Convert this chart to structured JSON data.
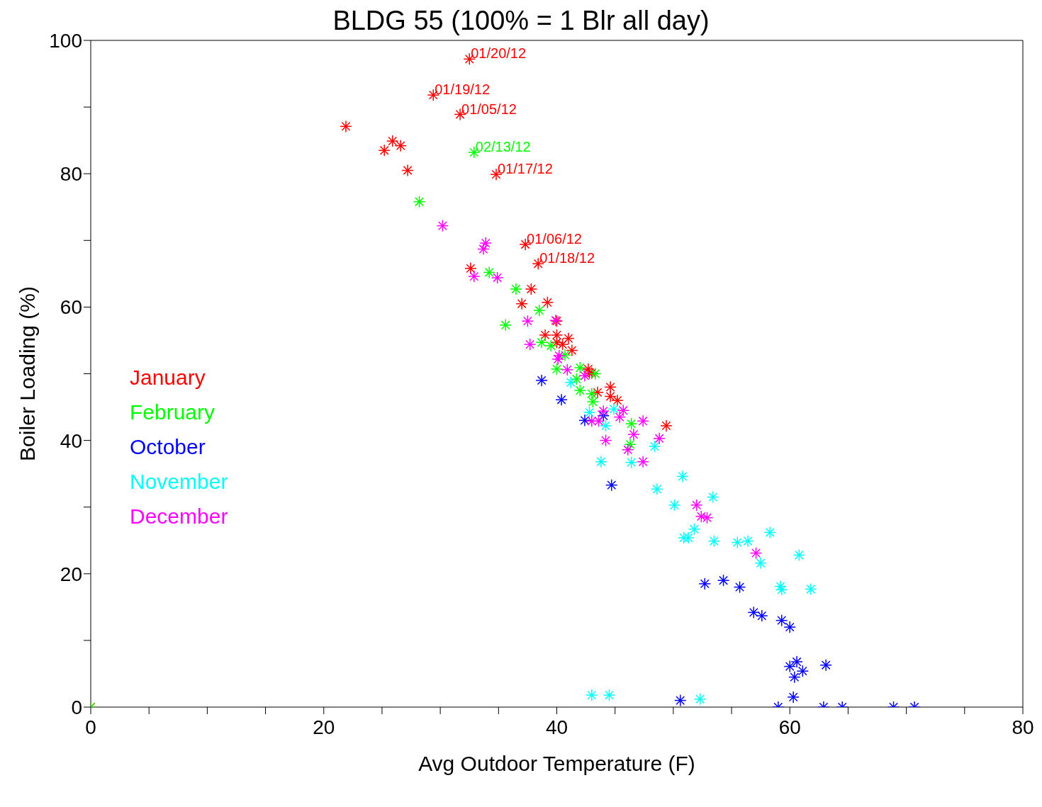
{
  "chart_data": {
    "type": "scatter",
    "title": "BLDG 55 (100% = 1 Blr all day)",
    "xlabel": "Avg Outdoor Temperature (F)",
    "ylabel": "Boiler Loading (%)",
    "xlim": [
      0,
      80
    ],
    "ylim": [
      0,
      100
    ],
    "xticks": [
      0,
      {
        "value": 5,
        "label": null
      },
      {
        "value": 10,
        "label": null
      },
      {
        "value": 15,
        "label": null
      },
      20,
      {
        "value": 25,
        "label": null
      },
      {
        "value": 30,
        "label": null
      },
      {
        "value": 35,
        "label": null
      },
      40,
      {
        "value": 45,
        "label": null
      },
      {
        "value": 50,
        "label": null
      },
      {
        "value": 55,
        "label": null
      },
      60,
      {
        "value": 65,
        "label": null
      },
      {
        "value": 70,
        "label": null
      },
      {
        "value": 75,
        "label": null
      },
      80
    ],
    "yticks": [
      0,
      {
        "value": 10,
        "label": null
      },
      20,
      {
        "value": 30,
        "label": null
      },
      40,
      {
        "value": 50,
        "label": null
      },
      60,
      {
        "value": 70,
        "label": null
      },
      80,
      {
        "value": 90,
        "label": null
      },
      100
    ],
    "grid": false,
    "legend": "left",
    "marker": "cross",
    "series": [
      {
        "name": "January",
        "color": "#ff0000",
        "x": [
          0,
          21.9,
          25.2,
          25.9,
          26.6,
          27.2,
          32.5,
          29.4,
          31.7,
          34.8,
          37.3,
          38.4,
          32.6,
          37.8,
          37.0,
          39.2,
          40.0,
          39.0,
          40.0,
          41.0,
          40.0,
          40.5,
          41.3,
          42.7,
          42.8,
          43.0,
          44.6,
          43.5,
          44.6,
          45.2,
          49.4
        ],
        "values": [
          0,
          87.1,
          83.5,
          84.9,
          84.2,
          80.5,
          97.2,
          91.8,
          88.9,
          79.9,
          69.4,
          66.5,
          65.8,
          62.7,
          60.5,
          60.7,
          57.9,
          55.8,
          55.8,
          55.3,
          54.7,
          54.4,
          53.5,
          50.7,
          50.1,
          50.1,
          48.0,
          47.2,
          46.6,
          46.0,
          42.2
        ]
      },
      {
        "name": "February",
        "color": "#00ff00",
        "x": [
          0,
          32.9,
          28.2,
          34.2,
          36.5,
          38.5,
          35.6,
          38.7,
          39.5,
          40.7,
          40.0,
          42.0,
          43.3,
          41.7,
          42.0,
          43.0,
          43.1,
          46.4,
          46.3
        ],
        "values": [
          0,
          83.2,
          75.8,
          65.2,
          62.7,
          59.5,
          57.3,
          54.7,
          54.2,
          52.8,
          50.7,
          50.9,
          50.0,
          49.2,
          47.5,
          47.0,
          45.8,
          42.5,
          39.4
        ]
      },
      {
        "name": "October",
        "color": "#0000ff",
        "x": [
          38.7,
          40.4,
          42.4,
          44.0,
          44.7,
          52.7,
          54.3,
          55.7,
          56.9,
          57.6,
          59.3,
          60.0,
          60.0,
          60.6,
          61.1,
          60.4,
          63.1,
          50.6,
          60.3,
          59.0,
          62.9,
          64.5,
          68.9,
          70.7
        ],
        "values": [
          49.0,
          46.1,
          43.0,
          43.7,
          33.3,
          18.5,
          19.0,
          18.0,
          14.2,
          13.7,
          13.0,
          12.0,
          6.1,
          6.8,
          5.4,
          4.5,
          6.3,
          1.0,
          1.5,
          0,
          0,
          0,
          0,
          0
        ]
      },
      {
        "name": "November",
        "color": "#00ffff",
        "x": [
          41.2,
          42.8,
          44.2,
          44.9,
          43.8,
          46.4,
          48.4,
          50.8,
          48.6,
          53.4,
          50.1,
          51.8,
          50.9,
          51.3,
          53.5,
          55.5,
          56.4,
          58.3,
          60.8,
          57.5,
          59.2,
          59.3,
          61.8,
          43.0,
          44.5,
          52.3
        ],
        "values": [
          48.7,
          44.2,
          42.2,
          44.7,
          36.8,
          36.7,
          39.1,
          34.6,
          32.7,
          31.5,
          30.3,
          26.7,
          25.4,
          25.4,
          24.9,
          24.7,
          24.9,
          26.2,
          22.8,
          21.6,
          18.1,
          17.6,
          17.7,
          1.8,
          1.8,
          1.2
        ]
      },
      {
        "name": "December",
        "color": "#ff00ff",
        "x": [
          30.2,
          33.9,
          33.7,
          32.9,
          34.9,
          37.5,
          39.9,
          37.7,
          40.2,
          40.1,
          40.9,
          42.4,
          44.0,
          45.7,
          45.4,
          43.0,
          43.6,
          47.4,
          46.6,
          44.2,
          48.8,
          46.1,
          47.4,
          52.0,
          52.4,
          52.9,
          57.1
        ],
        "values": [
          72.2,
          69.6,
          68.7,
          64.6,
          64.4,
          57.9,
          58.0,
          54.4,
          52.7,
          52.2,
          50.6,
          49.7,
          44.4,
          44.5,
          43.5,
          42.9,
          42.9,
          42.9,
          40.9,
          40.0,
          40.3,
          38.6,
          36.8,
          30.3,
          28.6,
          28.4,
          23.1
        ]
      }
    ],
    "annotations": [
      {
        "text": "01/20/12",
        "x": 32.5,
        "y": 97.2
      },
      {
        "text": "01/19/12",
        "x": 29.4,
        "y": 91.8
      },
      {
        "text": "01/05/12",
        "x": 31.7,
        "y": 88.9
      },
      {
        "text": "02/13/12",
        "x": 32.9,
        "y": 83.2
      },
      {
        "text": "01/17/12",
        "x": 34.8,
        "y": 79.9
      },
      {
        "text": "01/06/12",
        "x": 37.3,
        "y": 69.4
      },
      {
        "text": "01/18/12",
        "x": 38.4,
        "y": 66.5
      }
    ]
  }
}
